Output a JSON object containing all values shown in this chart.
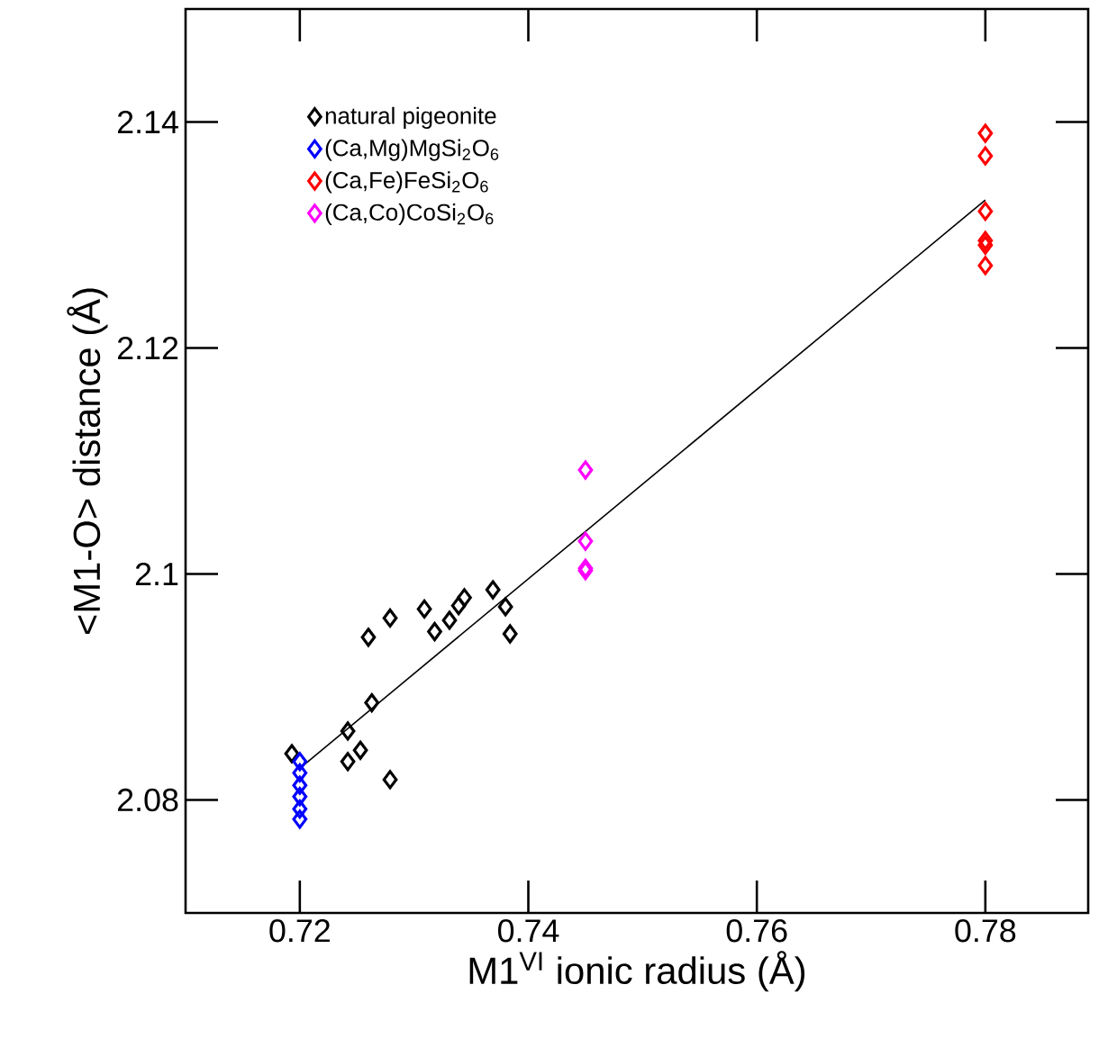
{
  "chart_data": {
    "type": "scatter",
    "xlabel": "M1$^{VI}$ ionic radius (Å)",
    "ylabel": "<M1-O> distance (Å)",
    "xlim": [
      0.71,
      0.789
    ],
    "ylim": [
      2.07,
      2.15
    ],
    "xticks": [
      0.72,
      0.74,
      0.76,
      0.78
    ],
    "yticks": [
      2.08,
      2.1,
      2.12,
      2.14
    ],
    "marker": "diamond",
    "legend": "top left",
    "grid": false,
    "series": [
      {
        "name": "natural pigeonite",
        "color": "#000000",
        "x": [
          0.7193,
          0.7279,
          0.726,
          0.7309,
          0.7318,
          0.7331,
          0.7339,
          0.7344,
          0.7369,
          0.738,
          0.7384,
          0.7263,
          0.7242,
          0.7253,
          0.7242,
          0.7279
        ],
        "values": [
          2.0841,
          2.0961,
          2.0944,
          2.0969,
          2.0949,
          2.0959,
          2.0972,
          2.0979,
          2.0986,
          2.0971,
          2.0947,
          2.0886,
          2.0861,
          2.0844,
          2.0834,
          2.0818
        ]
      },
      {
        "name": "(Ca,Mg)MgSi$_{2}$O$_{6}$",
        "color": "#0000ff",
        "x": [
          0.72,
          0.72,
          0.72,
          0.72,
          0.72,
          0.72
        ],
        "values": [
          2.0834,
          2.0824,
          2.0813,
          2.0803,
          2.0792,
          2.0783
        ]
      },
      {
        "name": "(Ca,Fe)FeSi$_{2}$O$_{6}$",
        "color": "#ff0000",
        "x": [
          0.78,
          0.78,
          0.78,
          0.78,
          0.78,
          0.78
        ],
        "values": [
          2.139,
          2.137,
          2.1321,
          2.1295,
          2.1291,
          2.1273
        ]
      },
      {
        "name": "(Ca,Co)CoSi$_{2}$O$_{6}$",
        "color": "#ff00ff",
        "x": [
          0.745,
          0.745,
          0.745,
          0.745
        ],
        "values": [
          2.1092,
          2.1029,
          2.1005,
          2.1003
        ]
      },
      {
        "type": "line",
        "color": "#000000",
        "marker": "none",
        "x": [
          0.72,
          0.78
        ],
        "values": [
          2.0828,
          2.1331
        ]
      }
    ]
  }
}
